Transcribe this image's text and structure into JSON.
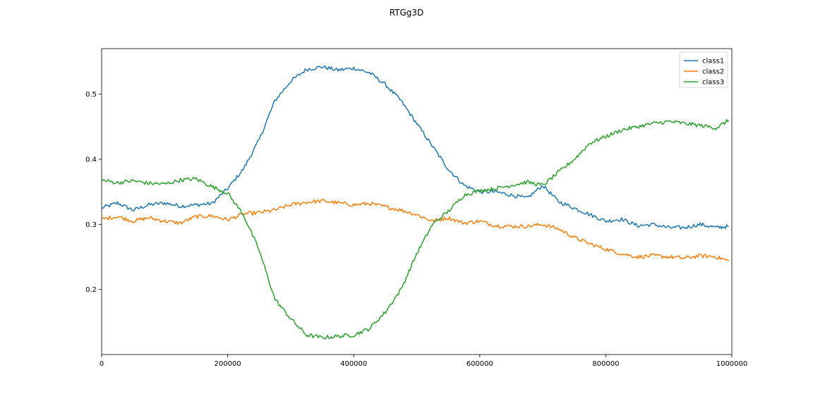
{
  "chart_data": {
    "type": "line",
    "title": "RTGg3D",
    "xlabel": "",
    "ylabel": "",
    "xlim": [
      0,
      1000000
    ],
    "ylim": [
      0.1,
      0.57
    ],
    "x_ticks": [
      0,
      200000,
      400000,
      600000,
      800000,
      1000000
    ],
    "x_tick_labels": [
      "0",
      "200000",
      "400000",
      "600000",
      "800000",
      "1000000"
    ],
    "y_ticks": [
      0.2,
      0.3,
      0.4,
      0.5
    ],
    "y_tick_labels": [
      "0.2",
      "0.3",
      "0.4",
      "0.5"
    ],
    "grid": false,
    "legend_position": "top-right",
    "x": [
      0,
      25000,
      50000,
      75000,
      100000,
      125000,
      150000,
      175000,
      200000,
      225000,
      250000,
      275000,
      300000,
      325000,
      350000,
      375000,
      400000,
      425000,
      450000,
      475000,
      500000,
      525000,
      550000,
      575000,
      600000,
      625000,
      650000,
      675000,
      700000,
      725000,
      750000,
      775000,
      800000,
      825000,
      850000,
      875000,
      900000,
      925000,
      950000,
      975000,
      995000
    ],
    "series": [
      {
        "name": "class1",
        "color": "#1f77b4",
        "values": [
          0.325,
          0.333,
          0.322,
          0.33,
          0.333,
          0.328,
          0.33,
          0.332,
          0.355,
          0.385,
          0.43,
          0.49,
          0.52,
          0.538,
          0.542,
          0.537,
          0.54,
          0.533,
          0.515,
          0.49,
          0.455,
          0.42,
          0.385,
          0.36,
          0.35,
          0.35,
          0.345,
          0.34,
          0.36,
          0.335,
          0.325,
          0.315,
          0.305,
          0.308,
          0.298,
          0.3,
          0.295,
          0.295,
          0.3,
          0.295,
          0.297
        ]
      },
      {
        "name": "class2",
        "color": "#ff7f0e",
        "values": [
          0.308,
          0.312,
          0.305,
          0.31,
          0.305,
          0.302,
          0.312,
          0.313,
          0.307,
          0.316,
          0.318,
          0.322,
          0.33,
          0.334,
          0.336,
          0.333,
          0.33,
          0.332,
          0.327,
          0.322,
          0.315,
          0.305,
          0.31,
          0.302,
          0.305,
          0.298,
          0.297,
          0.297,
          0.3,
          0.293,
          0.28,
          0.27,
          0.262,
          0.255,
          0.25,
          0.252,
          0.25,
          0.248,
          0.252,
          0.25,
          0.244
        ]
      },
      {
        "name": "class3",
        "color": "#2ca02c",
        "values": [
          0.368,
          0.364,
          0.367,
          0.363,
          0.362,
          0.368,
          0.37,
          0.358,
          0.348,
          0.315,
          0.26,
          0.185,
          0.155,
          0.13,
          0.126,
          0.128,
          0.13,
          0.14,
          0.165,
          0.2,
          0.255,
          0.3,
          0.32,
          0.345,
          0.352,
          0.355,
          0.36,
          0.365,
          0.36,
          0.38,
          0.4,
          0.425,
          0.435,
          0.445,
          0.45,
          0.455,
          0.458,
          0.455,
          0.452,
          0.448,
          0.46
        ]
      }
    ]
  }
}
